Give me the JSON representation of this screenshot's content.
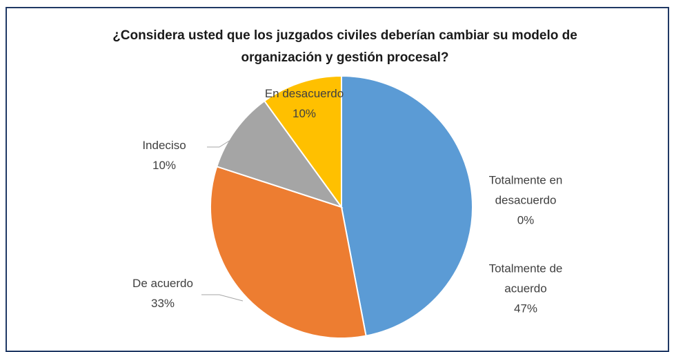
{
  "chart_data": {
    "type": "pie",
    "title": "¿Considera usted que los juzgados civiles deberían cambiar su modelo de organización y gestión procesal?",
    "categories": [
      "Totalmente en desacuerdo",
      "Totalmente de acuerdo",
      "De acuerdo",
      "Indeciso",
      "En desacuerdo"
    ],
    "values": [
      0,
      47,
      33,
      10,
      10
    ],
    "value_labels": [
      "0%",
      "47%",
      "33%",
      "10%",
      "10%"
    ],
    "colors": [
      "#4472c4",
      "#5b9bd5",
      "#ed7d31",
      "#a5a5a5",
      "#ffc000"
    ]
  }
}
